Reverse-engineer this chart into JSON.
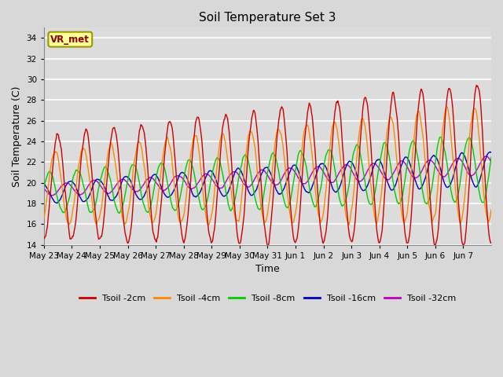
{
  "title": "Soil Temperature Set 3",
  "xlabel": "Time",
  "ylabel": "Soil Temperature (C)",
  "ylim": [
    14,
    35
  ],
  "yticks": [
    14,
    16,
    18,
    20,
    22,
    24,
    26,
    28,
    30,
    32,
    34
  ],
  "fig_bg_color": "#d8d8d8",
  "plot_bg_color": "#dcdcdc",
  "grid_color": "#ffffff",
  "watermark": "VR_met",
  "line_colors": {
    "2cm": "#cc0000",
    "4cm": "#ff8800",
    "8cm": "#00cc00",
    "16cm": "#0000bb",
    "32cm": "#bb00bb"
  },
  "legend_labels": [
    "Tsoil -2cm",
    "Tsoil -4cm",
    "Tsoil -8cm",
    "Tsoil -16cm",
    "Tsoil -32cm"
  ],
  "n_days": 16,
  "day_labels": [
    "May 23",
    "May 24",
    "May 25",
    "May 26",
    "May 27",
    "May 28",
    "May 29",
    "May 30",
    "May 31",
    "Jun 1",
    "Jun 2",
    "Jun 3",
    "Jun 4",
    "Jun 5",
    "Jun 6",
    "Jun 7"
  ]
}
